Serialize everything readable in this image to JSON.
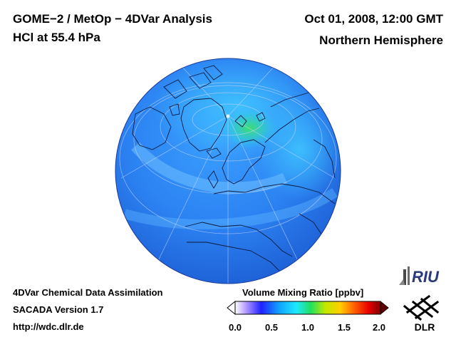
{
  "header": {
    "title_line1": "GOME−2 / MetOp − 4DVar Analysis",
    "title_line2": "HCl at 55.4 hPa",
    "date": "Oct 01, 2008, 12:00 GMT",
    "region": "Northern Hemisphere"
  },
  "footer": {
    "line1": "4DVar Chemical Data Assimilation",
    "line2": "SACADA Version 1.7",
    "line3": "http://wdc.dlr.de"
  },
  "colorbar": {
    "title": "Volume Mixing Ratio [ppbv]",
    "ticks": [
      "0.0",
      "0.5",
      "1.0",
      "1.5",
      "2.0"
    ],
    "range": [
      0.0,
      2.0
    ],
    "colors": [
      "#ffffff",
      "#b8a0ff",
      "#2020ff",
      "#10a0ff",
      "#20e8ff",
      "#20e060",
      "#c0e800",
      "#ffd000",
      "#ff6000",
      "#e80000",
      "#800000"
    ]
  },
  "logos": {
    "riu": "RIU",
    "dlr": "DLR"
  },
  "map": {
    "projection": "orthographic",
    "view": "north-polar",
    "dominant_color": "#2a7ff0",
    "enhanced_color": "#30e070"
  }
}
